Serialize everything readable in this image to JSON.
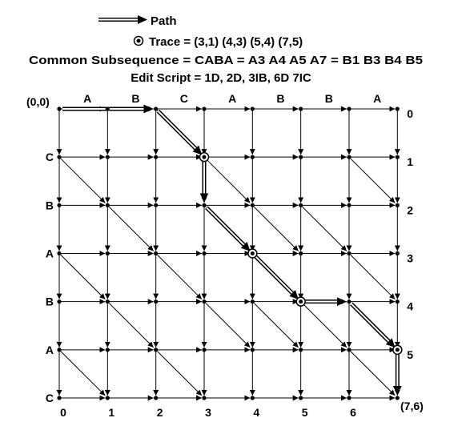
{
  "legend": {
    "path_label": "Path",
    "trace_label": "Trace = (3,1) (4,3) (5,4) (7,5)",
    "common_subsequence": "Common Subsequence = CABA = A3 A4 A5 A7 = B1 B3 B4 B5",
    "edit_script": "Edit Script = 1D, 2D, 3IB, 6D 7IC"
  },
  "graph": {
    "origin_label": "(0,0)",
    "end_label": "(7,6)",
    "sequence_a": [
      "A",
      "B",
      "C",
      "A",
      "B",
      "B",
      "A"
    ],
    "sequence_b": [
      "C",
      "B",
      "A",
      "B",
      "A",
      "C"
    ],
    "column_indices": [
      "0",
      "1",
      "2",
      "3",
      "4",
      "5",
      "6"
    ],
    "row_indices": [
      "0",
      "1",
      "2",
      "3",
      "4",
      "5"
    ],
    "diagonal_edges": [
      [
        2,
        0
      ],
      [
        0,
        1
      ],
      [
        3,
        1
      ],
      [
        6,
        1
      ],
      [
        1,
        2
      ],
      [
        3,
        2
      ],
      [
        4,
        2
      ],
      [
        5,
        2
      ],
      [
        0,
        3
      ],
      [
        2,
        3
      ],
      [
        4,
        3
      ],
      [
        6,
        3
      ],
      [
        1,
        4
      ],
      [
        3,
        4
      ],
      [
        4,
        4
      ],
      [
        5,
        4
      ],
      [
        0,
        5
      ],
      [
        2,
        5
      ],
      [
        6,
        5
      ]
    ],
    "path": [
      [
        0,
        0
      ],
      [
        2,
        0
      ],
      [
        3,
        1
      ],
      [
        3,
        2
      ],
      [
        4,
        3
      ],
      [
        5,
        4
      ],
      [
        6,
        4
      ],
      [
        7,
        5
      ],
      [
        7,
        6
      ]
    ],
    "trace_points": [
      [
        3,
        1
      ],
      [
        4,
        3
      ],
      [
        5,
        4
      ],
      [
        7,
        5
      ]
    ]
  }
}
